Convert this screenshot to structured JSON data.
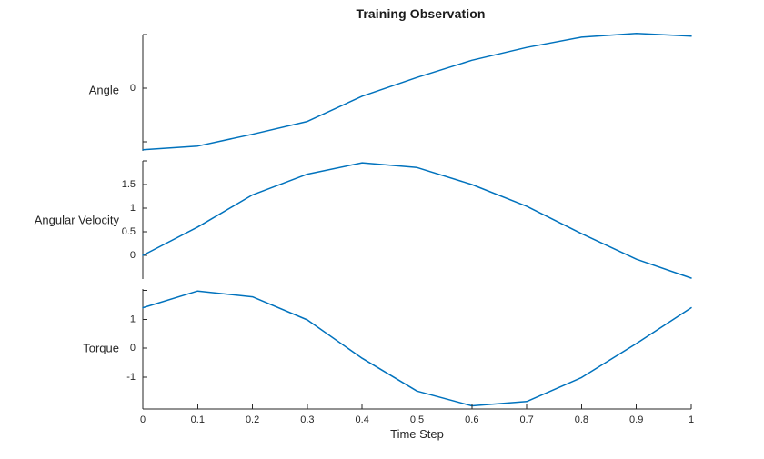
{
  "chart_data": {
    "type": "line",
    "title": "Training Observation",
    "xlabel": "Time Step",
    "grid": false,
    "legend": null,
    "line_color": "#0072BD",
    "axis_color": "#262626",
    "text_color": "#262626",
    "xlim": [
      0,
      1
    ],
    "x": [
      0,
      0.1,
      0.2,
      0.3,
      0.4,
      0.5,
      0.6,
      0.7,
      0.8,
      0.9,
      1.0
    ],
    "x_tick_labels": [
      "0",
      "0.1",
      "0.2",
      "0.3",
      "0.4",
      "0.5",
      "0.6",
      "0.7",
      "0.8",
      "0.9",
      "1"
    ],
    "subplots": [
      {
        "ylabel": "Angle",
        "ylim": [
          -1.17,
          1.0
        ],
        "yticks": [
          {
            "value": 1,
            "label": ""
          },
          {
            "value": 0,
            "label": "0"
          },
          {
            "value": -1,
            "label": ""
          }
        ],
        "values": [
          -1.15,
          -1.08,
          -0.86,
          -0.62,
          -0.15,
          0.2,
          0.52,
          0.76,
          0.95,
          1.02,
          0.97
        ]
      },
      {
        "ylabel": "Angular Velocity",
        "ylim": [
          -0.5,
          2.0
        ],
        "yticks": [
          {
            "value": 2,
            "label": ""
          },
          {
            "value": 1.5,
            "label": "1.5"
          },
          {
            "value": 1,
            "label": "1"
          },
          {
            "value": 0.5,
            "label": "0.5"
          },
          {
            "value": 0,
            "label": "0"
          }
        ],
        "values": [
          0.0,
          0.6,
          1.28,
          1.72,
          1.96,
          1.86,
          1.5,
          1.04,
          0.46,
          -0.08,
          -0.48
        ]
      },
      {
        "ylabel": "Torque",
        "ylim": [
          -2.11,
          2.05
        ],
        "yticks": [
          {
            "value": 2,
            "label": ""
          },
          {
            "value": 1,
            "label": "1"
          },
          {
            "value": 0,
            "label": "0"
          },
          {
            "value": -1,
            "label": "-1"
          }
        ],
        "values": [
          1.4,
          1.98,
          1.78,
          0.98,
          -0.35,
          -1.49,
          -2.0,
          -1.85,
          -1.02,
          0.16,
          1.4
        ]
      }
    ]
  }
}
